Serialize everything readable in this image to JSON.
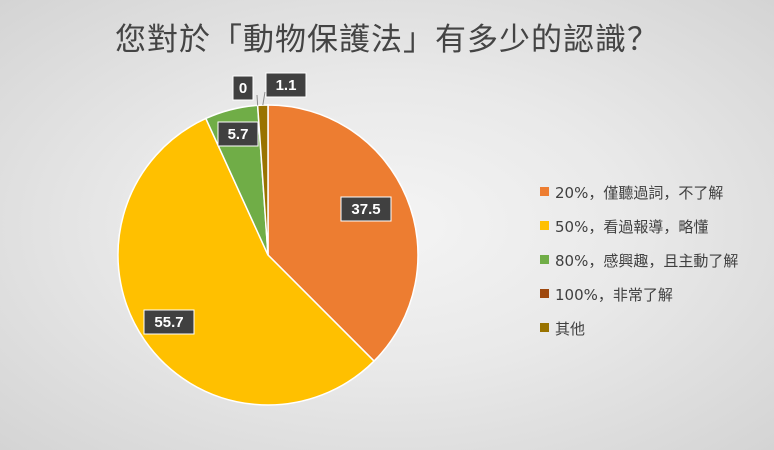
{
  "chart_data": {
    "type": "pie",
    "title": "您對於「動物保護法」有多少的認識？",
    "categories": [
      "20%，僅聽過詞，不了解",
      "50%，看過報導，略懂",
      "80%，感興趣，且主動了解",
      "100%，非常了解",
      "其他"
    ],
    "values": [
      37.5,
      55.7,
      5.7,
      0,
      1.1
    ],
    "colors": [
      "#ed7d31",
      "#ffc000",
      "#70ad47",
      "#9e480e",
      "#997300"
    ],
    "data_labels": [
      "37.5",
      "55.7",
      "5.7",
      "0",
      "1.1"
    ],
    "legend_position": "right",
    "start_angle_deg": 0,
    "direction": "clockwise"
  }
}
